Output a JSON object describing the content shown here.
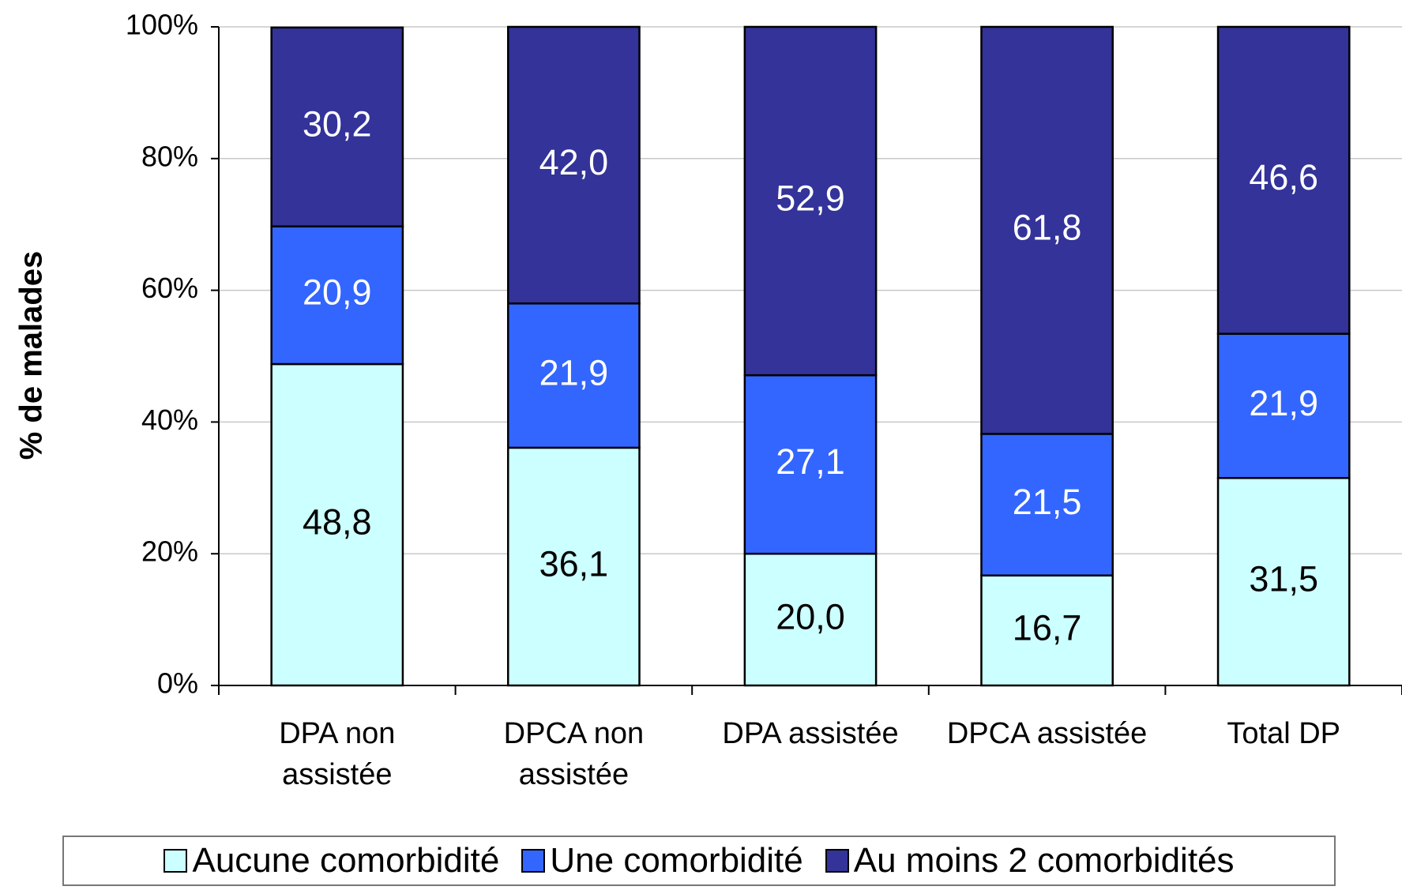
{
  "chart_data": {
    "type": "stacked_bar",
    "y_label": "% de malades",
    "categories": [
      "DPA non\nassistée",
      "DPCA non\nassistée",
      "DPA assistée",
      "DPCA assistée",
      "Total DP"
    ],
    "series": [
      {
        "name": "Aucune comorbidité",
        "color": "#ccffff",
        "label_color": "#000000",
        "values": [
          48.8,
          36.1,
          20.0,
          16.7,
          31.5
        ],
        "value_labels": [
          "48,8",
          "36,1",
          "20,0",
          "16,7",
          "31,5"
        ]
      },
      {
        "name": "Une comorbidité",
        "color": "#3366ff",
        "label_color": "#ffffff",
        "values": [
          20.9,
          21.9,
          27.1,
          21.5,
          21.9
        ],
        "value_labels": [
          "20,9",
          "21,9",
          "27,1",
          "21,5",
          "21,9"
        ]
      },
      {
        "name": "Au moins 2 comorbidités",
        "color": "#333399",
        "label_color": "#ffffff",
        "values": [
          30.2,
          42.0,
          52.9,
          61.8,
          46.6
        ],
        "value_labels": [
          "30,2",
          "42,0",
          "52,9",
          "61,8",
          "46,6"
        ]
      }
    ],
    "ylim": [
      0,
      100
    ],
    "yticks": [
      {
        "value": 0,
        "label": "0%"
      },
      {
        "value": 20,
        "label": "20%"
      },
      {
        "value": 40,
        "label": "40%"
      },
      {
        "value": 60,
        "label": "60%"
      },
      {
        "value": 80,
        "label": "80%"
      },
      {
        "value": 100,
        "label": "100%"
      }
    ],
    "grid": true
  }
}
